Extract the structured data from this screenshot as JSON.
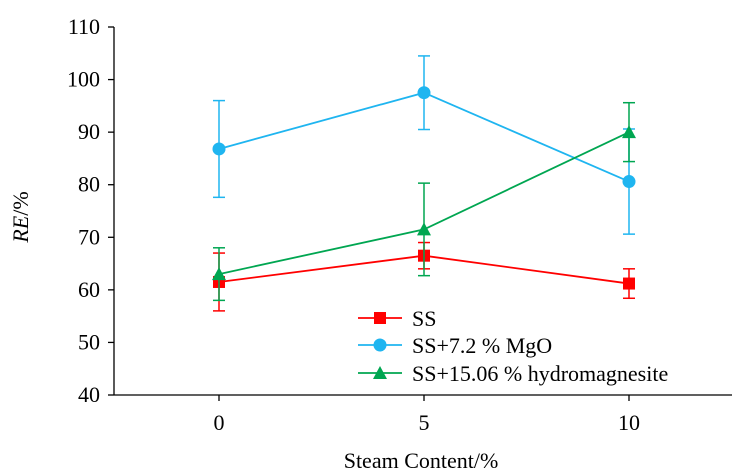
{
  "chart_data": {
    "type": "line",
    "title": "",
    "xlabel": "Steam Content/%",
    "ylabel": {
      "italic": "RE",
      "rest": "/%"
    },
    "categories": [
      "0",
      "5",
      "10"
    ],
    "ylim": [
      40,
      110
    ],
    "yticks": [
      40,
      50,
      60,
      70,
      80,
      90,
      100,
      110
    ],
    "grid": false,
    "legend_position": "bottom-right",
    "series": [
      {
        "name": "SS",
        "color": "#ff0000",
        "marker": "square",
        "values": [
          61.5,
          66.5,
          61.2
        ],
        "error": [
          5.5,
          2.5,
          2.8
        ]
      },
      {
        "name": "SS+7.2 % MgO",
        "color": "#1fb5f0",
        "marker": "circle",
        "values": [
          86.8,
          97.5,
          80.6
        ],
        "error": [
          9.2,
          7.0,
          10.0
        ]
      },
      {
        "name": "SS+15.06 % hydromagnesite",
        "color": "#00a651",
        "marker": "triangle",
        "values": [
          63.0,
          71.5,
          90.0
        ],
        "error": [
          5.0,
          8.8,
          5.6
        ]
      }
    ]
  }
}
